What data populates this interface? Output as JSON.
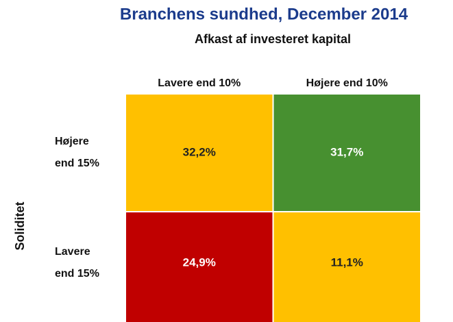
{
  "header": {
    "title": "Branchens sundhed, December 2014",
    "subtitle": "Afkast af investeret kapital"
  },
  "matrix": {
    "y_label": "Soliditet",
    "columns": [
      "Lavere end 10%",
      "Højere end 10%"
    ],
    "rows": [
      {
        "label": [
          "Højere",
          "end 15%"
        ],
        "cells": [
          {
            "text": "32,2%",
            "color": "#FFC000"
          },
          {
            "text": "31,7%",
            "color": "#479030"
          }
        ]
      },
      {
        "label": [
          "Lavere",
          "end 15%"
        ],
        "cells": [
          {
            "text": "24,9%",
            "color": "#C00000"
          },
          {
            "text": "11,1%",
            "color": "#FFC000"
          }
        ]
      }
    ]
  }
}
